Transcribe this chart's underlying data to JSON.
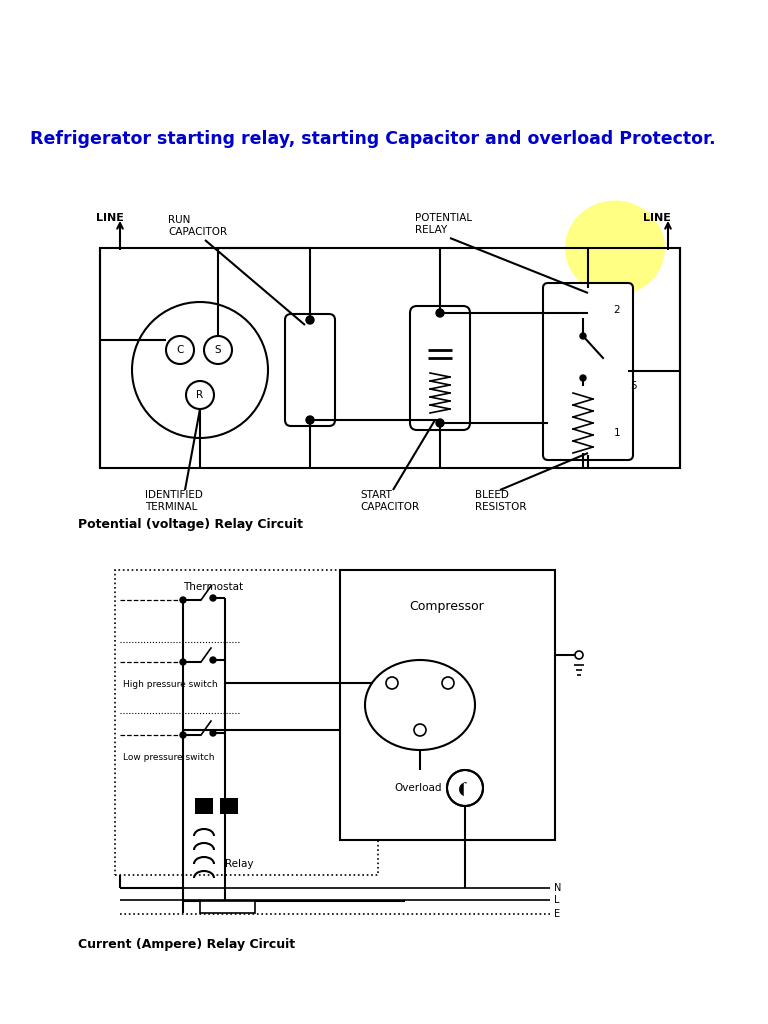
{
  "title": "Refrigerator starting relay, starting Capacitor and overload Protector.",
  "title_color": "#0000CC",
  "title_fontsize": 12.5,
  "diagram1_caption": "Potential (voltage) Relay Circuit",
  "diagram2_caption": "Current (Ampere) Relay Circuit",
  "bg_color": "#FFFFFF",
  "lc": "#000000",
  "yellow_color": "#FFFF66",
  "lw": 1.5
}
